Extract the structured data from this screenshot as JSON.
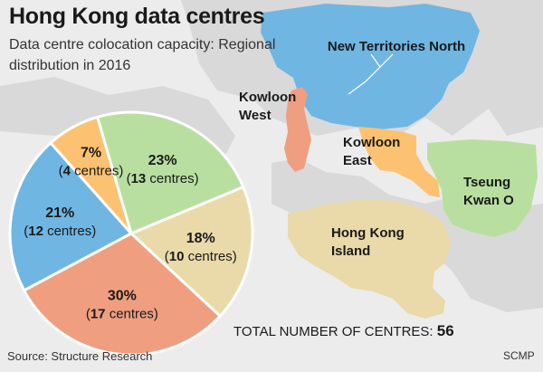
{
  "title": "Hong Kong data centres",
  "subtitle": "Data centre colocation capacity: Regional distribution in 2016",
  "source": "Source: Structure Research",
  "credit": "SCMP",
  "total": {
    "label": "TOTAL NUMBER OF CENTRES:",
    "value": "56"
  },
  "chart_data": {
    "type": "pie",
    "title": "Hong Kong data centres",
    "subtitle": "Data centre colocation capacity: Regional distribution in 2016",
    "slices": [
      {
        "region": "New Territories North",
        "percent": 21,
        "label_pct": "21%",
        "centres_num": "12",
        "centres_word": "centres",
        "color": "#6fb6e3"
      },
      {
        "region": "Kowloon East",
        "percent": 7,
        "label_pct": "7%",
        "centres_num": "4",
        "centres_word": "centres",
        "color": "#fcc271"
      },
      {
        "region": "Tseung Kwan O",
        "percent": 23,
        "label_pct": "23%",
        "centres_num": "13",
        "centres_word": "centres",
        "color": "#b8dfa0"
      },
      {
        "region": "Hong Kong Island",
        "percent": 18,
        "label_pct": "18%",
        "centres_num": "10",
        "centres_word": "centres",
        "color": "#ead9a9"
      },
      {
        "region": "Kowloon West",
        "percent": 30,
        "label_pct": "30%",
        "centres_num": "17",
        "centres_word": "centres",
        "color": "#ef9e80"
      }
    ]
  },
  "map": {
    "regions": [
      {
        "name": "New Territories North",
        "lines": [
          "New Territories North"
        ],
        "color": "#6fb6e3"
      },
      {
        "name": "Kowloon West",
        "lines": [
          "Kowloon",
          "West"
        ],
        "color": "#ef9e80"
      },
      {
        "name": "Kowloon East",
        "lines": [
          "Kowloon",
          "East"
        ],
        "color": "#fcc271"
      },
      {
        "name": "Tseung Kwan O",
        "lines": [
          "Tseung",
          "Kwan O"
        ],
        "color": "#b8dfa0"
      },
      {
        "name": "Hong Kong Island",
        "lines": [
          "Hong Kong",
          "Island"
        ],
        "color": "#ead9a9"
      }
    ]
  }
}
